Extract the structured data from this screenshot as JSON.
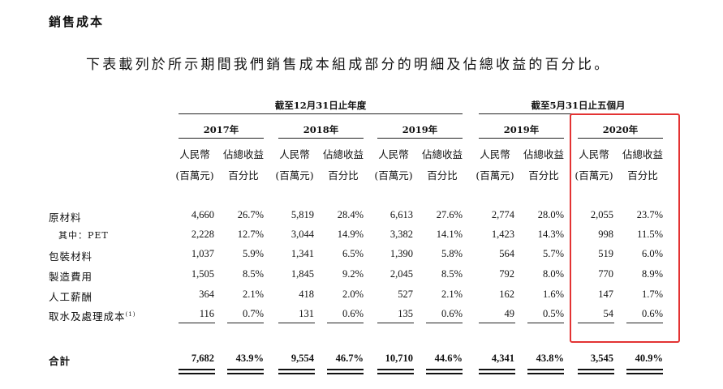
{
  "title": "銷售成本",
  "intro": "下表載列於所示期間我們銷售成本組成部分的明細及佔總收益的百分比。",
  "group_headers": [
    "截至12月31日止年度",
    "截至5月31日止五個月"
  ],
  "years": [
    "2017年",
    "2018年",
    "2019年",
    "2019年",
    "2020年"
  ],
  "col_head": {
    "rmb": "人民幣",
    "rmb_unit": "(百萬元)",
    "pct": "佔總收益",
    "pct_unit": "百分比"
  },
  "rows": [
    {
      "label": "原材料",
      "cells": [
        "4,660",
        "26.7%",
        "5,819",
        "28.4%",
        "6,613",
        "27.6%",
        "2,774",
        "28.0%",
        "2,055",
        "23.7%"
      ]
    },
    {
      "label": "其中：PET",
      "cells": [
        "2,228",
        "12.7%",
        "3,044",
        "14.9%",
        "3,382",
        "14.1%",
        "1,423",
        "14.3%",
        "998",
        "11.5%"
      ]
    },
    {
      "label": "包裝材料",
      "cells": [
        "1,037",
        "5.9%",
        "1,341",
        "6.5%",
        "1,390",
        "5.8%",
        "564",
        "5.7%",
        "519",
        "6.0%"
      ]
    },
    {
      "label": "製造費用",
      "cells": [
        "1,505",
        "8.5%",
        "1,845",
        "9.2%",
        "2,045",
        "8.5%",
        "792",
        "8.0%",
        "770",
        "8.9%"
      ]
    },
    {
      "label": "人工薪酬",
      "cells": [
        "364",
        "2.1%",
        "418",
        "2.0%",
        "527",
        "2.1%",
        "162",
        "1.6%",
        "147",
        "1.7%"
      ]
    },
    {
      "label": "取水及處理成本",
      "footnote": "(1)",
      "cells": [
        "116",
        "0.7%",
        "131",
        "0.6%",
        "135",
        "0.6%",
        "49",
        "0.5%",
        "54",
        "0.6%"
      ]
    }
  ],
  "total": {
    "label": "合計",
    "cells": [
      "7,682",
      "43.9%",
      "9,554",
      "46.7%",
      "10,710",
      "44.6%",
      "4,341",
      "43.8%",
      "3,545",
      "40.9%"
    ]
  },
  "highlight_color": "#e33333"
}
